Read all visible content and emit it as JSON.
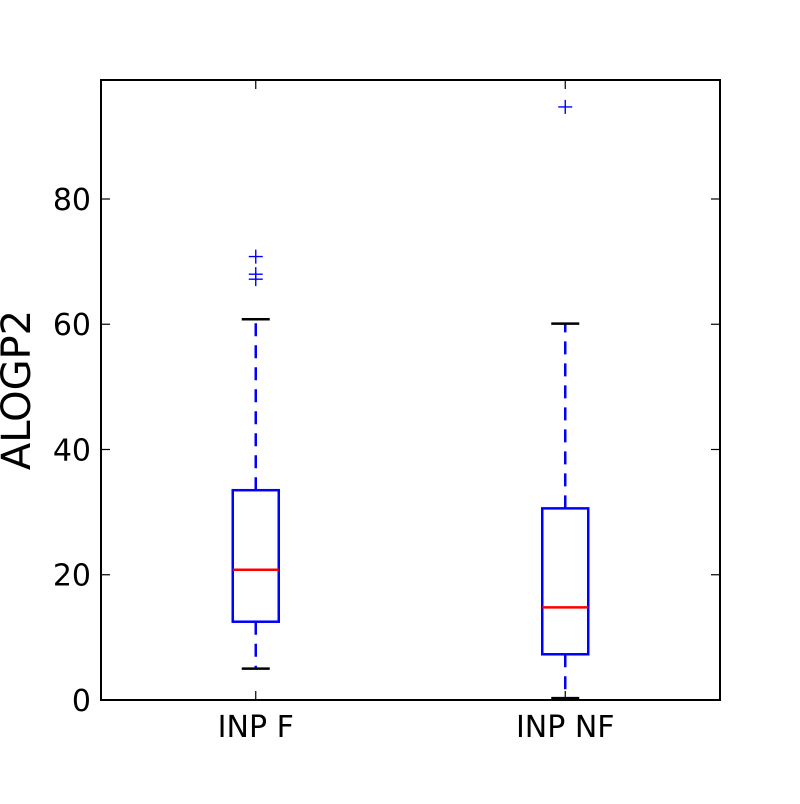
{
  "chart_data": {
    "type": "box",
    "title": "",
    "xlabel": "",
    "ylabel": "ALOGP2",
    "categories": [
      "INP F",
      "INP NF"
    ],
    "boxes": [
      {
        "category": "INP F",
        "whisker_low": 5,
        "q1": 12.5,
        "median": 20.8,
        "q3": 33.5,
        "whisker_high": 60.8,
        "outliers": [
          67.2,
          68.0,
          70.8
        ]
      },
      {
        "category": "INP NF",
        "whisker_low": 0.3,
        "q1": 7.3,
        "median": 14.8,
        "q3": 30.6,
        "whisker_high": 60.1,
        "outliers": [
          94.7
        ]
      }
    ],
    "ylim": [
      0,
      99
    ],
    "yticks": [
      0,
      20,
      40,
      60,
      80
    ],
    "ytick_labels": [
      "0",
      "20",
      "40",
      "60",
      "80"
    ],
    "grid": false,
    "colors": {
      "box": "#0000ff",
      "whisker": "#0000ff",
      "median": "#ff0000",
      "cap": "#000000",
      "outlier": "#0000ff",
      "axes": "#000000"
    }
  }
}
